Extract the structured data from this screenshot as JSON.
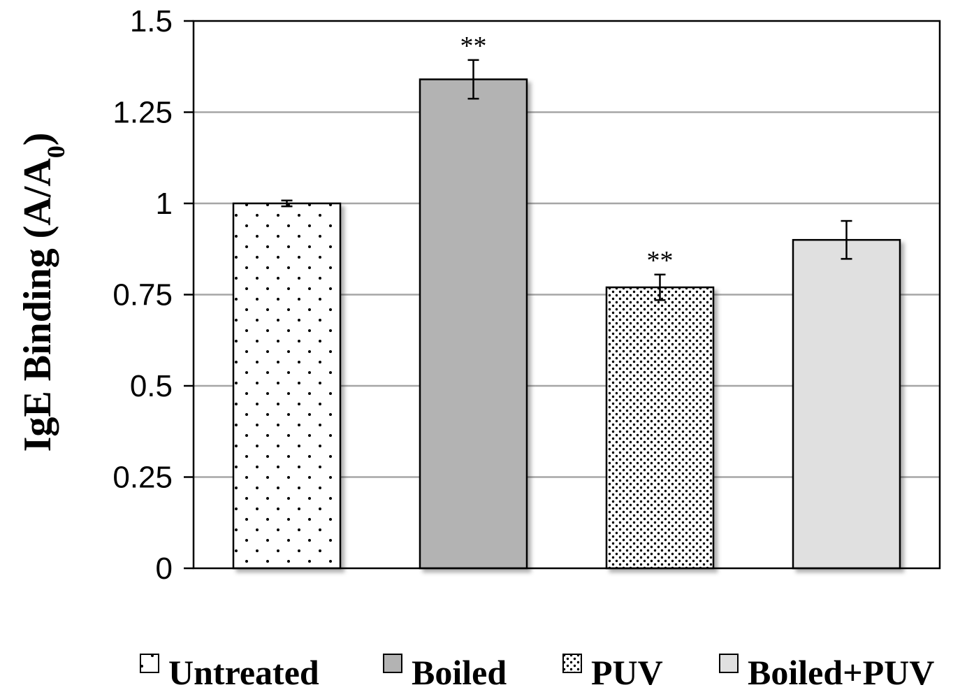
{
  "chart_data": {
    "type": "bar",
    "title": "",
    "xlabel": "",
    "ylabel": "IgE Binding (A/A",
    "ylabel_subscript": "0",
    "ylabel_close": ")",
    "ylim": [
      0,
      1.5
    ],
    "yticks": [
      0,
      0.25,
      0.5,
      0.75,
      1,
      1.25,
      1.5
    ],
    "ytick_labels": [
      "0",
      "0.25",
      "0.5",
      "0.75",
      "1",
      "1.25",
      "1.5"
    ],
    "grid": true,
    "legend_position": "bottom",
    "categories": [
      "Untreated",
      "Boiled",
      "PUV",
      "Boiled+PUV"
    ],
    "values": [
      1.0,
      1.34,
      0.77,
      0.9
    ],
    "errors": [
      0.008,
      0.053,
      0.035,
      0.052
    ],
    "annotations": [
      "",
      "**",
      "**",
      ""
    ],
    "fill_styles": [
      "sparse-dots",
      "solid",
      "dense-dots",
      "solid"
    ],
    "colors": [
      "#ffffff",
      "#b3b3b3",
      "#bfbfbf",
      "#e0e0e0"
    ]
  }
}
